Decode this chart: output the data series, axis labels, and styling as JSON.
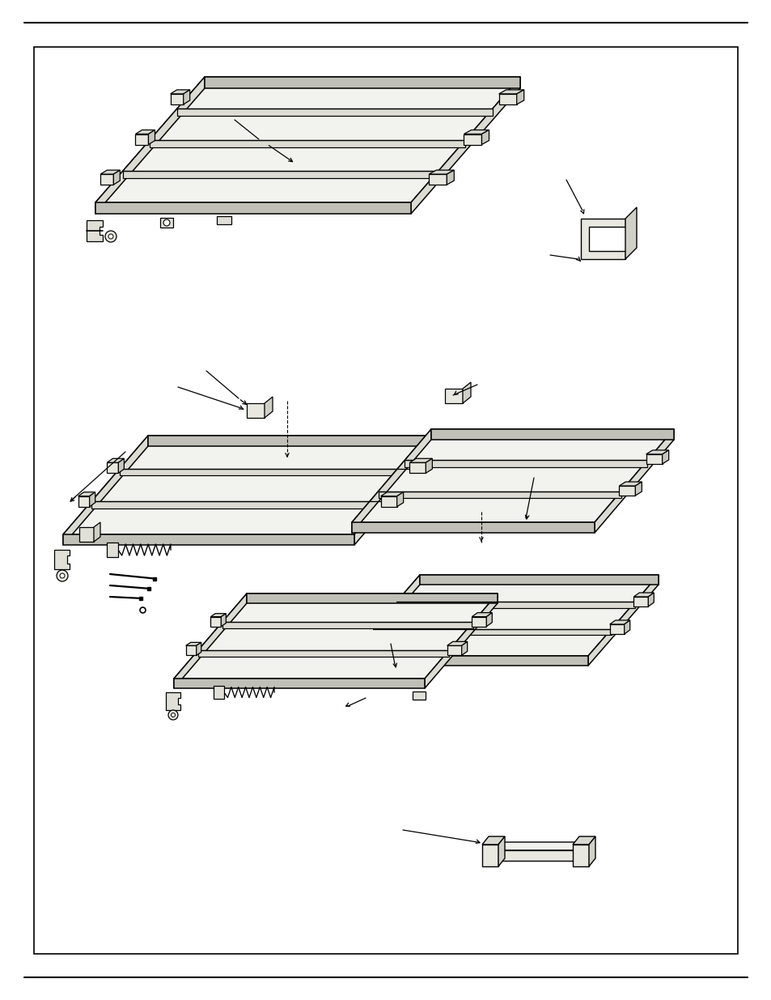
{
  "bg_color": "#ffffff",
  "line_color": "#000000",
  "figure_width": 9.54,
  "figure_height": 12.35,
  "dpi": 100,
  "fc_top": "#f2f2ee",
  "fc_side": "#dcdcd4",
  "fc_dark": "#c8c8c0",
  "fc_light": "#f8f8f4"
}
